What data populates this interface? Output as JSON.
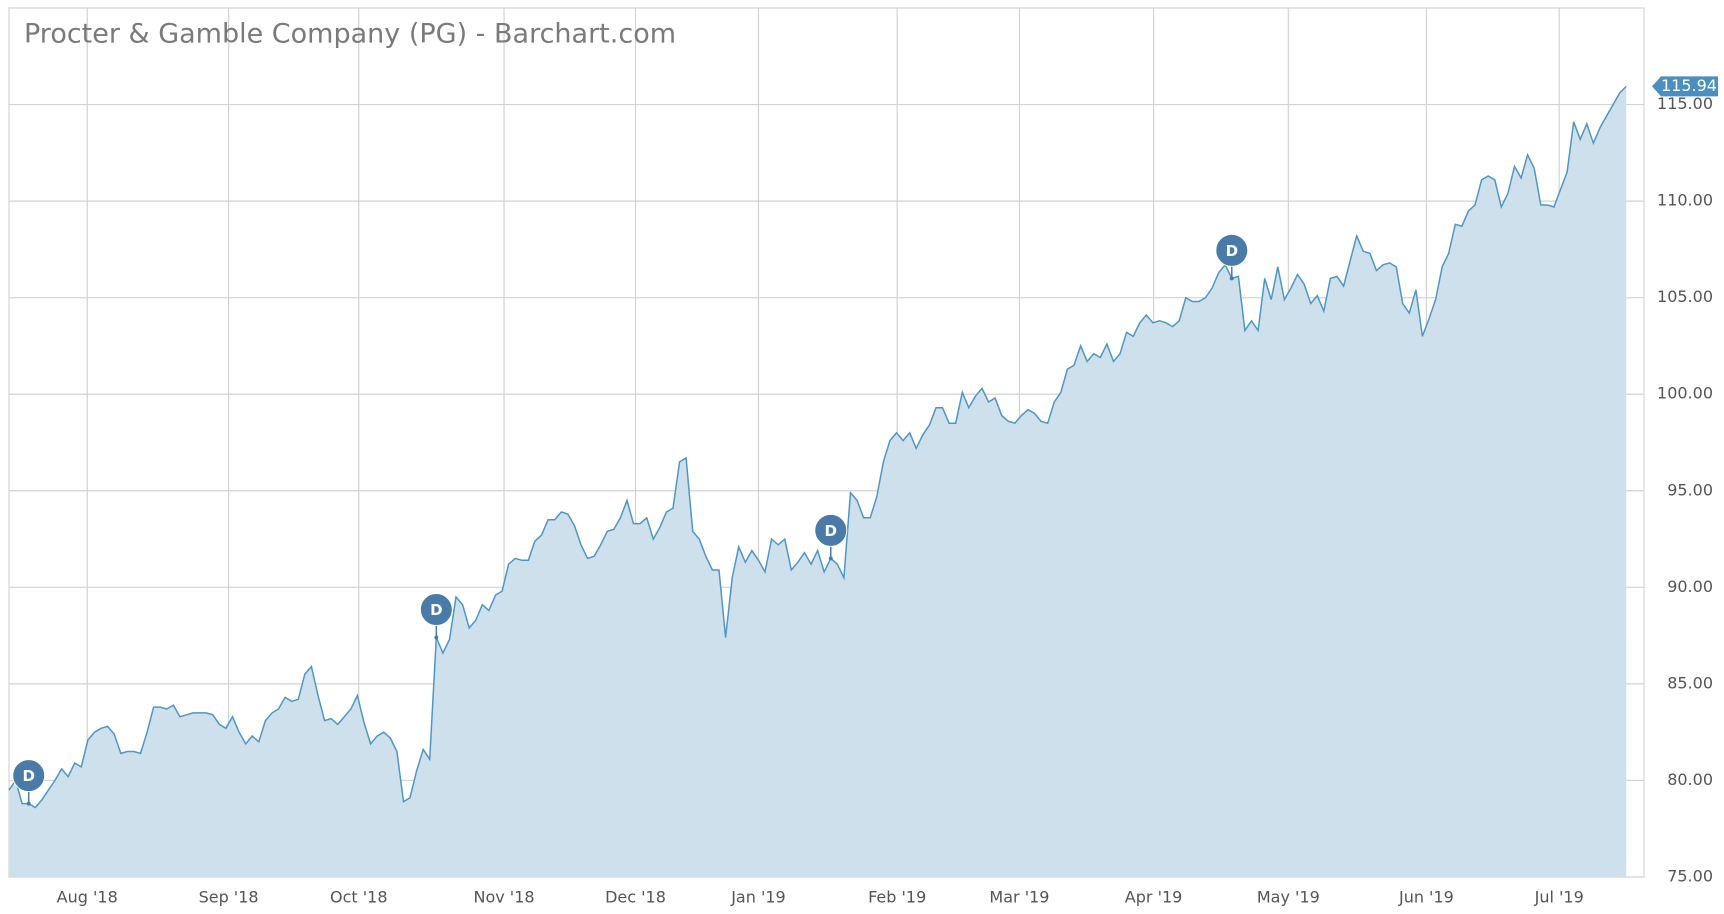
{
  "chart_data": {
    "type": "area",
    "title": "Procter & Gamble Company (PG) - Barchart.com",
    "color": "#4f97c3",
    "fill": "#cde0ec",
    "grid": true,
    "values": [
      79.5,
      80.0,
      78.8,
      78.8,
      78.6,
      79.0,
      79.5,
      80.0,
      80.6,
      80.2,
      80.9,
      80.7,
      82.1,
      82.5,
      82.7,
      82.8,
      82.4,
      81.4,
      81.5,
      81.5,
      81.4,
      82.5,
      83.8,
      83.8,
      83.7,
      83.9,
      83.3,
      83.4,
      83.5,
      83.5,
      83.5,
      83.4,
      82.9,
      82.7,
      83.3,
      82.5,
      81.9,
      82.3,
      82.0,
      83.1,
      83.5,
      83.7,
      84.3,
      84.1,
      84.2,
      85.5,
      85.9,
      84.4,
      83.1,
      83.2,
      82.9,
      83.3,
      83.7,
      84.4,
      83.0,
      81.9,
      82.3,
      82.5,
      82.2,
      81.5,
      78.9,
      79.1,
      80.5,
      81.6,
      81.1,
      87.4,
      86.6,
      87.3,
      89.5,
      89.1,
      87.9,
      88.3,
      89.1,
      88.8,
      89.6,
      89.8,
      91.2,
      91.5,
      91.4,
      91.4,
      92.4,
      92.7,
      93.5,
      93.5,
      93.9,
      93.8,
      93.2,
      92.2,
      91.5,
      91.6,
      92.2,
      92.9,
      93.0,
      93.6,
      94.5,
      93.3,
      93.3,
      93.6,
      92.5,
      93.1,
      93.9,
      94.1,
      96.5,
      96.7,
      92.9,
      92.5,
      91.6,
      90.9,
      90.9,
      87.4,
      90.5,
      92.1,
      91.3,
      91.9,
      91.4,
      90.8,
      92.5,
      92.2,
      92.5,
      90.9,
      91.3,
      91.8,
      91.2,
      91.9,
      90.8,
      91.5,
      91.2,
      90.5,
      94.9,
      94.5,
      93.6,
      93.6,
      94.7,
      96.5,
      97.6,
      98.0,
      97.6,
      98.0,
      97.2,
      97.9,
      98.4,
      99.3,
      99.3,
      98.5,
      98.5,
      100.1,
      99.3,
      99.9,
      100.3,
      99.6,
      99.8,
      98.9,
      98.6,
      98.5,
      98.9,
      99.2,
      99.0,
      98.6,
      98.5,
      99.6,
      100.1,
      101.3,
      101.5,
      102.5,
      101.7,
      102.1,
      101.9,
      102.6,
      101.7,
      102.1,
      103.2,
      103.0,
      103.7,
      104.1,
      103.7,
      103.8,
      103.7,
      103.5,
      103.8,
      105.0,
      104.8,
      104.8,
      105.0,
      105.5,
      106.3,
      106.7,
      106.0,
      106.1,
      103.3,
      103.8,
      103.3,
      106.0,
      104.9,
      106.6,
      104.9,
      105.5,
      106.2,
      105.7,
      104.7,
      105.1,
      104.3,
      106.0,
      106.1,
      105.6,
      106.9,
      108.2,
      107.4,
      107.3,
      106.4,
      106.7,
      106.8,
      106.6,
      104.7,
      104.2,
      105.4,
      103.0,
      103.9,
      104.9,
      106.6,
      107.3,
      108.8,
      108.7,
      109.5,
      109.8,
      111.1,
      111.3,
      111.1,
      109.7,
      110.4,
      111.8,
      111.2,
      112.4,
      111.7,
      109.8,
      109.8,
      109.7,
      110.6,
      111.5,
      114.1,
      113.2,
      114.0,
      113.0,
      113.8,
      114.4,
      115.0,
      115.6,
      115.94
    ],
    "xlim": [
      0,
      248.7
    ],
    "xticks": [
      {
        "value": 11.9,
        "label": "Aug '18"
      },
      {
        "value": 33.4,
        "label": "Sep '18"
      },
      {
        "value": 53.2,
        "label": "Oct '18"
      },
      {
        "value": 75.3,
        "label": "Nov '18"
      },
      {
        "value": 95.3,
        "label": "Dec '18"
      },
      {
        "value": 114.0,
        "label": "Jan '19"
      },
      {
        "value": 135.1,
        "label": "Feb '19"
      },
      {
        "value": 153.7,
        "label": "Mar '19"
      },
      {
        "value": 174.1,
        "label": "Apr '19"
      },
      {
        "value": 194.6,
        "label": "May '19"
      },
      {
        "value": 215.6,
        "label": "Jun '19"
      },
      {
        "value": 235.8,
        "label": "Jul '19"
      }
    ],
    "ylim": [
      75,
      120
    ],
    "yticks": [
      {
        "value": 75,
        "label": "75.00"
      },
      {
        "value": 80,
        "label": "80.00"
      },
      {
        "value": 85,
        "label": "85.00"
      },
      {
        "value": 90,
        "label": "90.00"
      },
      {
        "value": 95,
        "label": "95.00"
      },
      {
        "value": 100,
        "label": "100.00"
      },
      {
        "value": 105,
        "label": "105.00"
      },
      {
        "value": 110,
        "label": "110.00"
      },
      {
        "value": 115,
        "label": "115.00"
      }
    ],
    "events": [
      {
        "x": 3,
        "label": "D"
      },
      {
        "x": 65,
        "label": "D"
      },
      {
        "x": 125,
        "label": "D"
      },
      {
        "x": 186,
        "label": "D"
      }
    ]
  }
}
